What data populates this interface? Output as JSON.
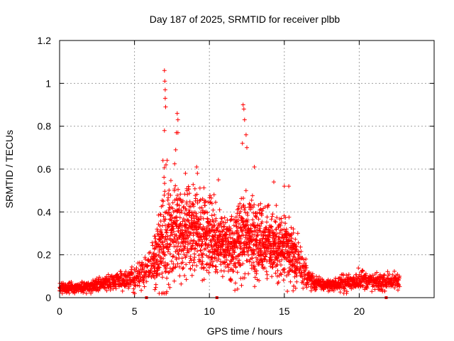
{
  "chart_data": {
    "type": "scatter",
    "title": "Day 187 of 2025, SRMTID for receiver plbb",
    "xlabel": "GPS time / hours",
    "ylabel": "SRMTID / TECUs",
    "xlim": [
      0,
      25
    ],
    "ylim": [
      0,
      1.2
    ],
    "xticks": [
      0,
      5,
      10,
      15,
      20
    ],
    "yticks": [
      0,
      0.2,
      0.4,
      0.6,
      0.8,
      1.0,
      1.2
    ],
    "xtick_labels": [
      "0",
      "5",
      "10",
      "15",
      "20"
    ],
    "ytick_labels": [
      "0",
      "0.2",
      "0.4",
      "0.6",
      "0.8",
      "1",
      "1.2"
    ],
    "grid": true,
    "marker": "+",
    "color": "#ff0000",
    "axis_markers_x": [
      5.8,
      10.5,
      21.8
    ],
    "envelope": {
      "x": [
        0,
        1,
        2,
        3,
        4,
        5,
        5.5,
        6,
        6.5,
        7,
        7.5,
        8,
        8.5,
        9,
        9.5,
        10,
        10.5,
        11,
        11.5,
        12,
        12.5,
        13,
        13.5,
        14,
        14.5,
        15,
        15.5,
        16,
        16.5,
        17,
        17.5,
        18,
        18.5,
        19,
        19.5,
        20,
        20.5,
        21,
        21.5,
        22,
        22.7
      ],
      "center": [
        0.05,
        0.05,
        0.05,
        0.07,
        0.08,
        0.09,
        0.11,
        0.15,
        0.18,
        0.3,
        0.35,
        0.32,
        0.3,
        0.32,
        0.28,
        0.3,
        0.27,
        0.25,
        0.22,
        0.25,
        0.3,
        0.28,
        0.27,
        0.26,
        0.24,
        0.22,
        0.2,
        0.16,
        0.1,
        0.07,
        0.06,
        0.06,
        0.06,
        0.07,
        0.07,
        0.09,
        0.08,
        0.07,
        0.07,
        0.08,
        0.07
      ],
      "spread": [
        0.02,
        0.02,
        0.02,
        0.03,
        0.03,
        0.04,
        0.05,
        0.06,
        0.1,
        0.2,
        0.2,
        0.16,
        0.15,
        0.15,
        0.13,
        0.14,
        0.12,
        0.1,
        0.1,
        0.13,
        0.15,
        0.13,
        0.12,
        0.12,
        0.12,
        0.12,
        0.1,
        0.07,
        0.04,
        0.03,
        0.02,
        0.02,
        0.02,
        0.03,
        0.03,
        0.04,
        0.03,
        0.03,
        0.03,
        0.03,
        0.03
      ]
    },
    "peaks": [
      {
        "x": 7.0,
        "y": 1.06
      },
      {
        "x": 7.02,
        "y": 1.01
      },
      {
        "x": 7.05,
        "y": 0.97
      },
      {
        "x": 7.05,
        "y": 0.93
      },
      {
        "x": 7.08,
        "y": 0.89
      },
      {
        "x": 7.0,
        "y": 0.78
      },
      {
        "x": 7.85,
        "y": 0.86
      },
      {
        "x": 7.9,
        "y": 0.83
      },
      {
        "x": 7.8,
        "y": 0.77
      },
      {
        "x": 7.9,
        "y": 0.77
      },
      {
        "x": 7.75,
        "y": 0.69
      },
      {
        "x": 12.25,
        "y": 0.9
      },
      {
        "x": 12.3,
        "y": 0.88
      },
      {
        "x": 12.35,
        "y": 0.83
      },
      {
        "x": 12.45,
        "y": 0.76
      },
      {
        "x": 12.5,
        "y": 0.7
      },
      {
        "x": 12.2,
        "y": 0.72
      },
      {
        "x": 9.15,
        "y": 0.61
      },
      {
        "x": 9.2,
        "y": 0.58
      },
      {
        "x": 10.6,
        "y": 0.55
      },
      {
        "x": 14.3,
        "y": 0.54
      },
      {
        "x": 15.0,
        "y": 0.52
      },
      {
        "x": 15.3,
        "y": 0.52
      },
      {
        "x": 8.4,
        "y": 0.58
      },
      {
        "x": 13.0,
        "y": 0.61
      },
      {
        "x": 6.9,
        "y": 0.64
      },
      {
        "x": 7.1,
        "y": 0.62
      }
    ]
  }
}
